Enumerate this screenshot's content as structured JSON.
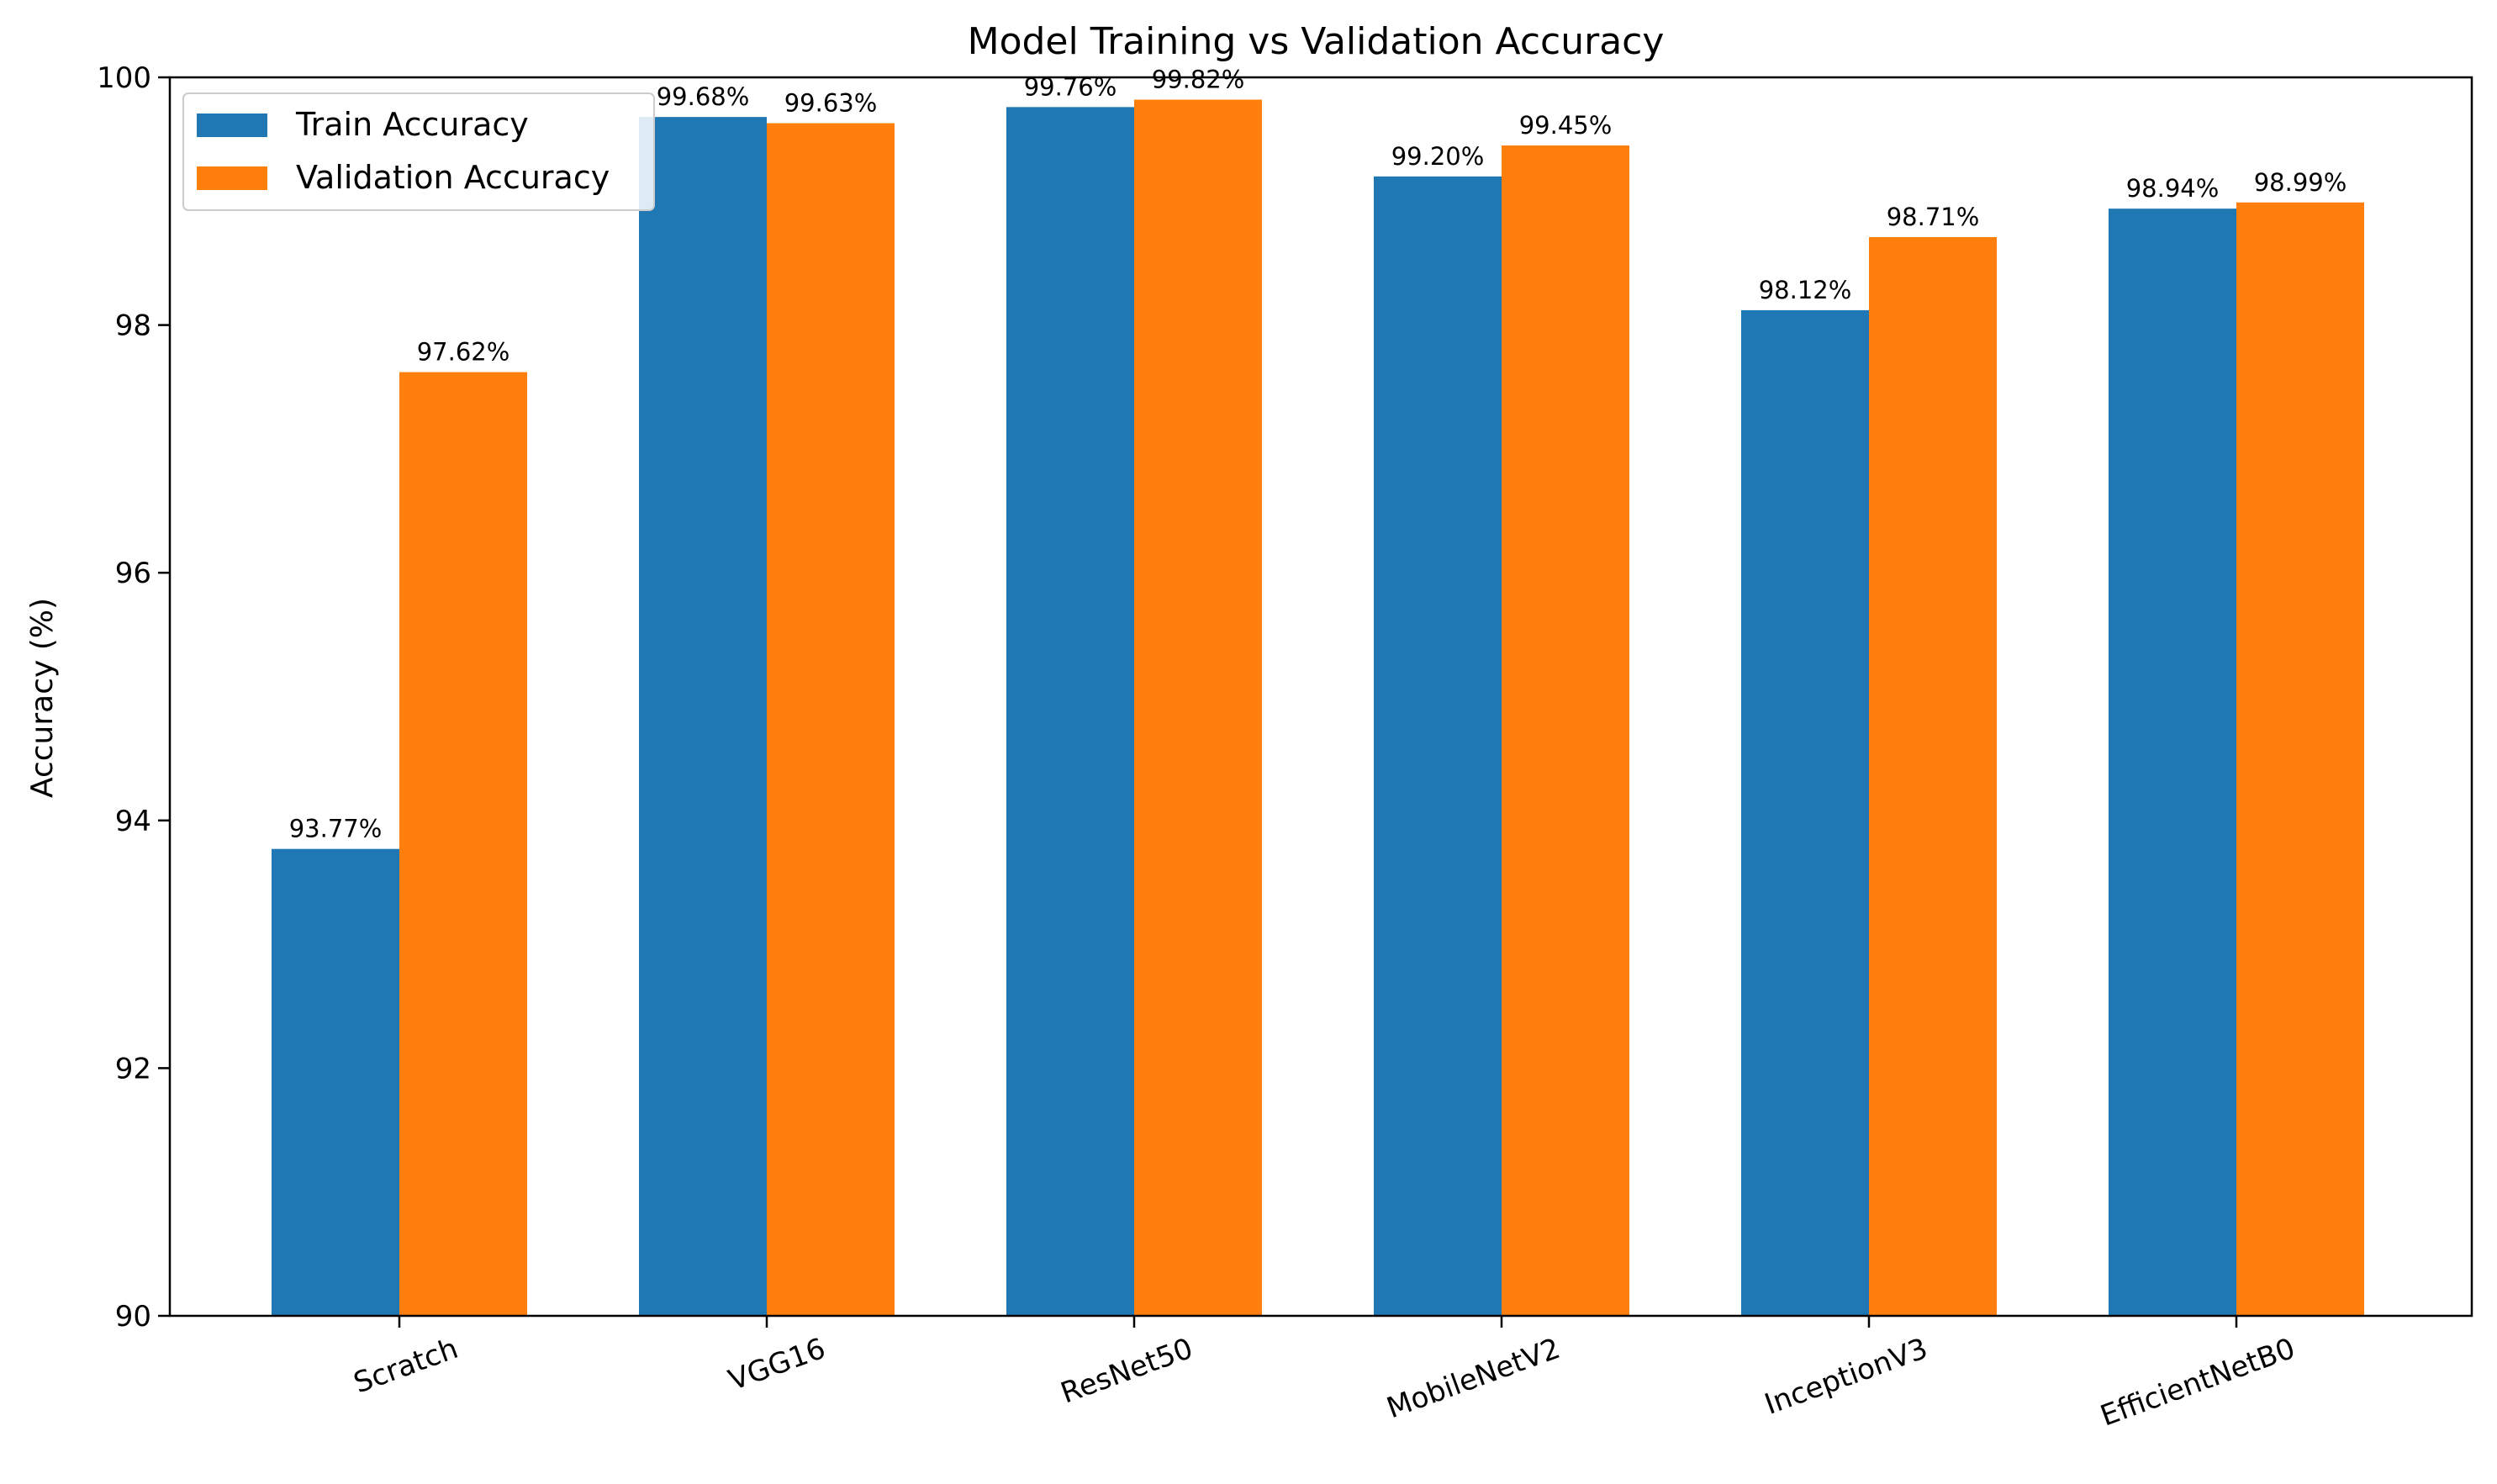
{
  "chart_data": {
    "type": "bar",
    "title": "Model Training vs Validation Accuracy",
    "xlabel": "",
    "ylabel": "Accuracy (%)",
    "ylim": [
      90,
      100
    ],
    "yticks": [
      "90",
      "92",
      "94",
      "96",
      "98",
      "100"
    ],
    "categories": [
      "Scratch",
      "VGG16",
      "ResNet50",
      "MobileNetV2",
      "InceptionV3",
      "EfficientNetB0"
    ],
    "series": [
      {
        "name": "Train Accuracy",
        "color": "#1f77b4",
        "values": [
          93.77,
          99.68,
          99.76,
          99.2,
          98.12,
          98.94
        ],
        "labels": [
          "93.77%",
          "99.68%",
          "99.76%",
          "99.20%",
          "98.12%",
          "98.94%"
        ]
      },
      {
        "name": "Validation Accuracy",
        "color": "#ff7f0e",
        "values": [
          97.62,
          99.63,
          99.82,
          99.45,
          98.71,
          98.99
        ],
        "labels": [
          "97.62%",
          "99.63%",
          "99.82%",
          "99.45%",
          "98.71%",
          "98.99%"
        ]
      }
    ],
    "legend": "top-left",
    "grid": false
  }
}
